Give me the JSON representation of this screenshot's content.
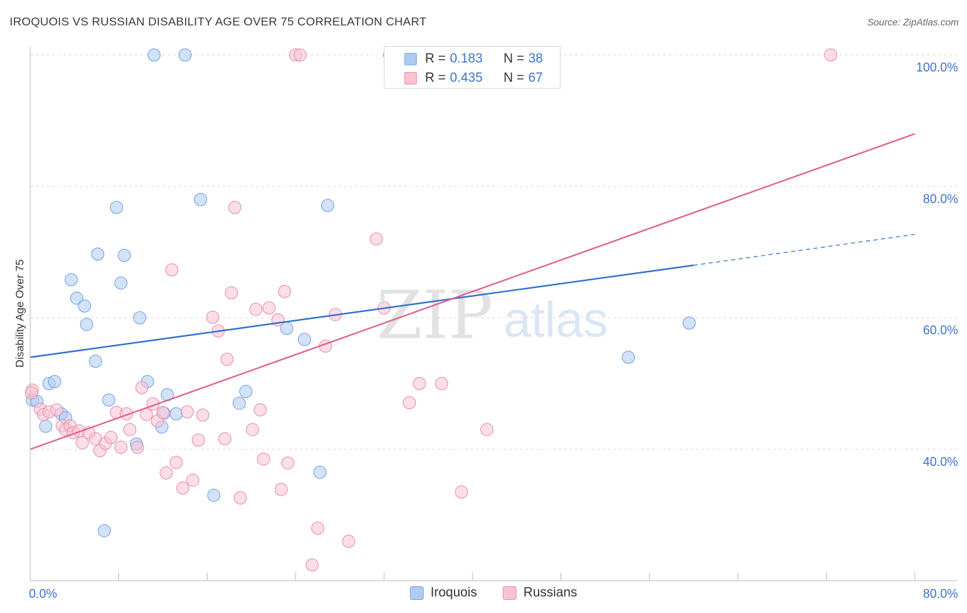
{
  "header": {
    "title": "IROQUOIS VS RUSSIAN DISABILITY AGE OVER 75 CORRELATION CHART",
    "source": "Source: ZipAtlas.com"
  },
  "watermark": {
    "zip": "ZIP",
    "atlas": "atlas"
  },
  "legend_top": [
    {
      "r_label": "R =",
      "r_value": "0.183",
      "n_label": "N =",
      "n_value": "38",
      "color": "#aecbf2",
      "border": "#7ea7e0"
    },
    {
      "r_label": "R =",
      "r_value": "0.435",
      "n_label": "N =",
      "n_value": "67",
      "color": "#f7c3d3",
      "border": "#e88fae"
    }
  ],
  "legend_bottom": [
    {
      "label": "Iroquois",
      "color": "#aecbf2",
      "border": "#7ea7e0"
    },
    {
      "label": "Russians",
      "color": "#f7c3d3",
      "border": "#e88fae"
    }
  ],
  "chart_data": {
    "type": "scatter",
    "title": "IROQUOIS VS RUSSIAN DISABILITY AGE OVER 75 CORRELATION CHART",
    "ylabel": "Disability Age Over 75",
    "xlim": [
      0,
      80
    ],
    "ylim": [
      20,
      100
    ],
    "x_ticks": [
      "0.0%",
      "80.0%"
    ],
    "y_ticks": [
      {
        "value": 40,
        "label": "40.0%"
      },
      {
        "value": 60,
        "label": "60.0%"
      },
      {
        "value": 80,
        "label": "80.0%"
      },
      {
        "value": 100,
        "label": "100.0%"
      }
    ],
    "grid": true,
    "series": [
      {
        "name": "Iroquois",
        "color": "#6f9fe0",
        "fill": "#aecbf2",
        "line_color": "#2f6fcc",
        "trend": {
          "x0": 0,
          "y0": 54.0,
          "x1": 60,
          "y1": 68.0,
          "dash_to_x": 80,
          "dash_to_y": 72.7
        },
        "points": [
          [
            0.2,
            47.5
          ],
          [
            0.6,
            47.3
          ],
          [
            1.4,
            43.5
          ],
          [
            1.7,
            50.0
          ],
          [
            2.2,
            50.3
          ],
          [
            2.8,
            45.4
          ],
          [
            3.2,
            44.8
          ],
          [
            3.7,
            65.8
          ],
          [
            4.2,
            63.0
          ],
          [
            4.9,
            61.8
          ],
          [
            5.1,
            59.0
          ],
          [
            5.9,
            53.4
          ],
          [
            6.1,
            69.7
          ],
          [
            6.7,
            27.6
          ],
          [
            7.1,
            47.5
          ],
          [
            7.8,
            76.8
          ],
          [
            8.2,
            65.3
          ],
          [
            8.5,
            69.5
          ],
          [
            9.6,
            40.8
          ],
          [
            9.9,
            60.0
          ],
          [
            10.6,
            50.3
          ],
          [
            11.2,
            100
          ],
          [
            11.9,
            43.4
          ],
          [
            12.1,
            45.5
          ],
          [
            12.4,
            48.3
          ],
          [
            13.2,
            45.4
          ],
          [
            14.0,
            100
          ],
          [
            15.4,
            78.0
          ],
          [
            16.6,
            33.0
          ],
          [
            18.9,
            47.0
          ],
          [
            19.5,
            48.8
          ],
          [
            23.2,
            58.4
          ],
          [
            24.8,
            56.7
          ],
          [
            26.2,
            36.5
          ],
          [
            26.9,
            77.1
          ],
          [
            38.4,
            100
          ],
          [
            54.1,
            54.0
          ],
          [
            59.6,
            59.2
          ]
        ]
      },
      {
        "name": "Russians",
        "color": "#e98aab",
        "fill": "#f7c3d3",
        "line_color": "#e0628f",
        "trend": {
          "x0": 0,
          "y0": 40.0,
          "x1": 80,
          "y1": 88.0
        },
        "points": [
          [
            0.2,
            49.0
          ],
          [
            0.9,
            46.1
          ],
          [
            1.2,
            45.3
          ],
          [
            1.7,
            45.7
          ],
          [
            2.4,
            46.0
          ],
          [
            2.9,
            43.6
          ],
          [
            3.2,
            43.0
          ],
          [
            3.6,
            43.6
          ],
          [
            3.9,
            42.5
          ],
          [
            4.4,
            42.8
          ],
          [
            4.7,
            41.0
          ],
          [
            5.3,
            42.5
          ],
          [
            5.9,
            41.6
          ],
          [
            6.3,
            39.8
          ],
          [
            6.8,
            40.9
          ],
          [
            7.3,
            41.8
          ],
          [
            7.8,
            45.6
          ],
          [
            8.2,
            40.3
          ],
          [
            8.7,
            45.4
          ],
          [
            9.0,
            43.0
          ],
          [
            9.7,
            40.3
          ],
          [
            10.1,
            49.4
          ],
          [
            10.5,
            45.3
          ],
          [
            11.1,
            46.9
          ],
          [
            11.5,
            44.3
          ],
          [
            12.0,
            45.6
          ],
          [
            12.3,
            36.4
          ],
          [
            12.8,
            67.3
          ],
          [
            13.2,
            38.0
          ],
          [
            13.8,
            34.1
          ],
          [
            14.2,
            45.7
          ],
          [
            14.7,
            35.3
          ],
          [
            15.2,
            41.4
          ],
          [
            15.6,
            45.2
          ],
          [
            16.5,
            60.1
          ],
          [
            17.0,
            58.0
          ],
          [
            17.6,
            41.6
          ],
          [
            17.8,
            53.7
          ],
          [
            18.2,
            63.8
          ],
          [
            18.5,
            76.8
          ],
          [
            19.0,
            32.6
          ],
          [
            20.1,
            43.0
          ],
          [
            20.4,
            61.3
          ],
          [
            20.8,
            46.0
          ],
          [
            21.1,
            38.5
          ],
          [
            21.6,
            61.5
          ],
          [
            22.4,
            59.7
          ],
          [
            22.7,
            33.9
          ],
          [
            23.0,
            64.0
          ],
          [
            23.3,
            37.9
          ],
          [
            24.0,
            100
          ],
          [
            24.4,
            100
          ],
          [
            25.5,
            22.4
          ],
          [
            26.0,
            28.0
          ],
          [
            26.7,
            55.7
          ],
          [
            27.6,
            60.5
          ],
          [
            28.8,
            26.0
          ],
          [
            31.3,
            72.0
          ],
          [
            32.0,
            61.5
          ],
          [
            32.5,
            100
          ],
          [
            34.3,
            47.1
          ],
          [
            35.2,
            50.0
          ],
          [
            37.2,
            50.0
          ],
          [
            39.0,
            33.5
          ],
          [
            41.3,
            43.0
          ],
          [
            72.4,
            100
          ],
          [
            0.1,
            48.6
          ]
        ]
      }
    ]
  }
}
